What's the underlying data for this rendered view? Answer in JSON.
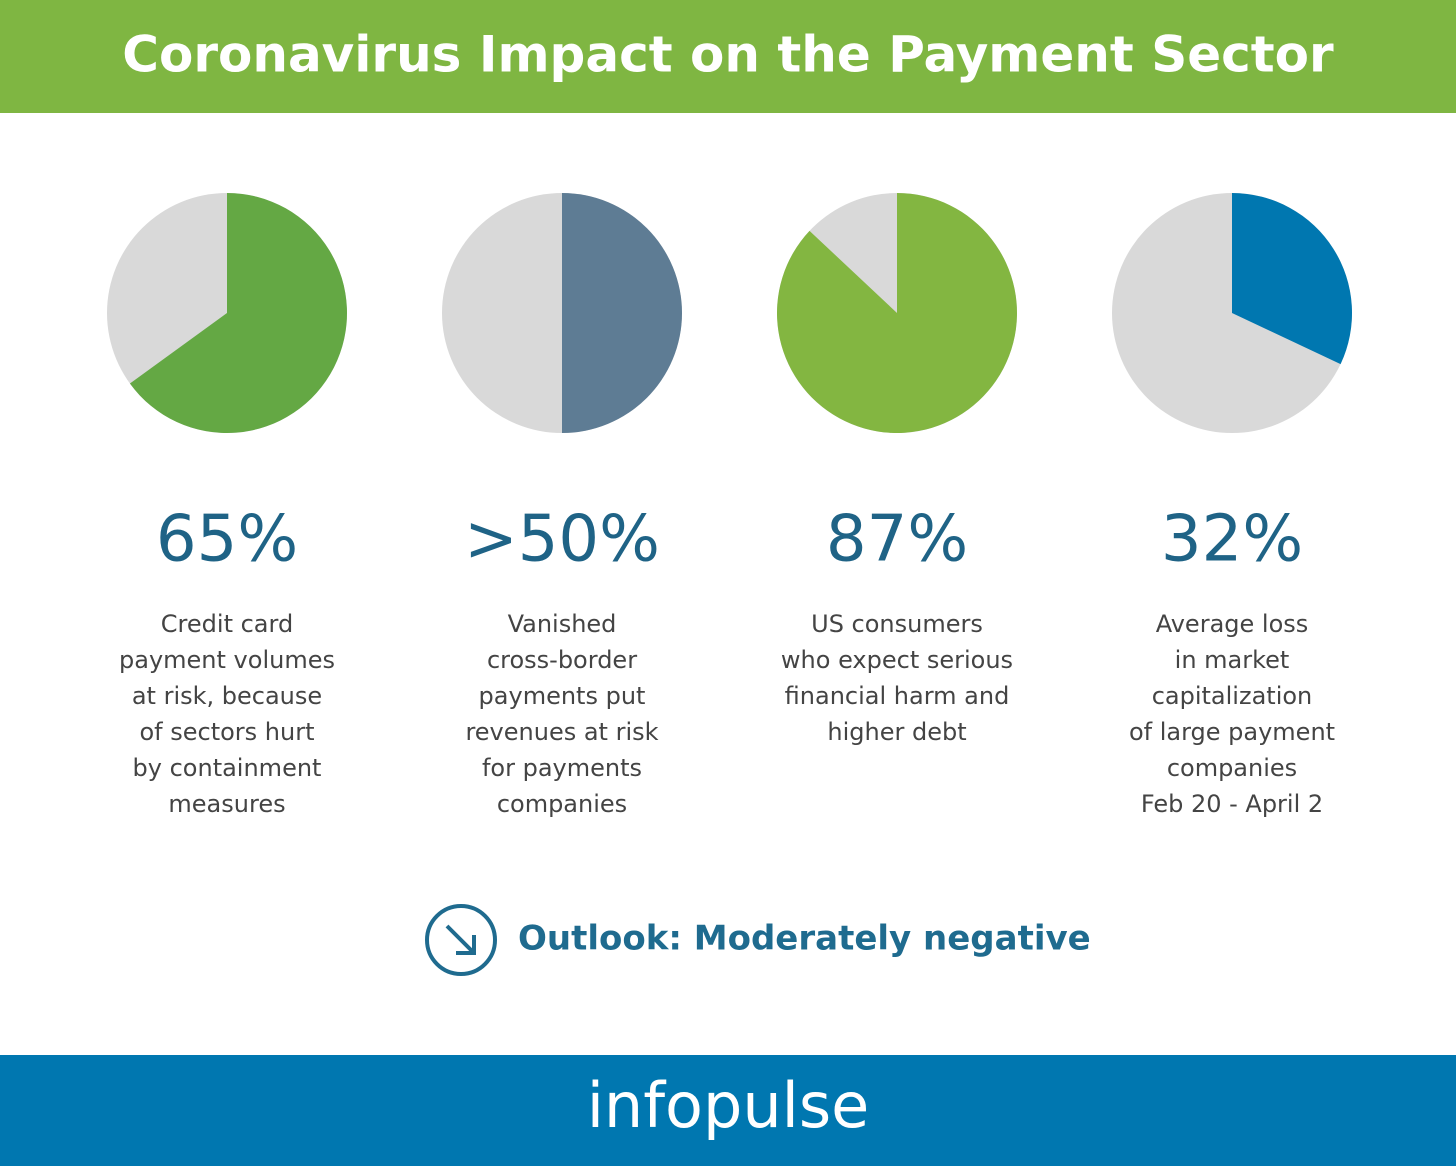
{
  "title": "Coronavirus Impact on the Payment Sector",
  "chart_data": [
    {
      "type": "pie",
      "values": [
        65
      ],
      "value_labels": [
        "65%"
      ],
      "color": "#64a844",
      "caption": [
        "Credit card",
        "payment volumes",
        "at risk, because",
        "of sectors hurt",
        "by containment",
        "measures"
      ]
    },
    {
      "type": "pie",
      "values": [
        50
      ],
      "value_labels": [
        ">50%"
      ],
      "color": "#5e7c94",
      "caption": [
        "Vanished",
        "cross-border",
        "payments put",
        "revenues at risk",
        "for payments",
        "companies"
      ]
    },
    {
      "type": "pie",
      "values": [
        87
      ],
      "value_labels": [
        "87%"
      ],
      "color": "#83b641",
      "caption": [
        "US consumers",
        "who expect serious",
        "financial harm and",
        "higher debt"
      ]
    },
    {
      "type": "pie",
      "values": [
        32
      ],
      "value_labels": [
        "32%"
      ],
      "color": "#0077b0",
      "caption": [
        "Average loss",
        "in market",
        "capitalization",
        "of large payment",
        "companies",
        "Feb 20 - April 2"
      ]
    }
  ],
  "outlook": "Outlook: Moderately negative",
  "brand": "infopulse"
}
